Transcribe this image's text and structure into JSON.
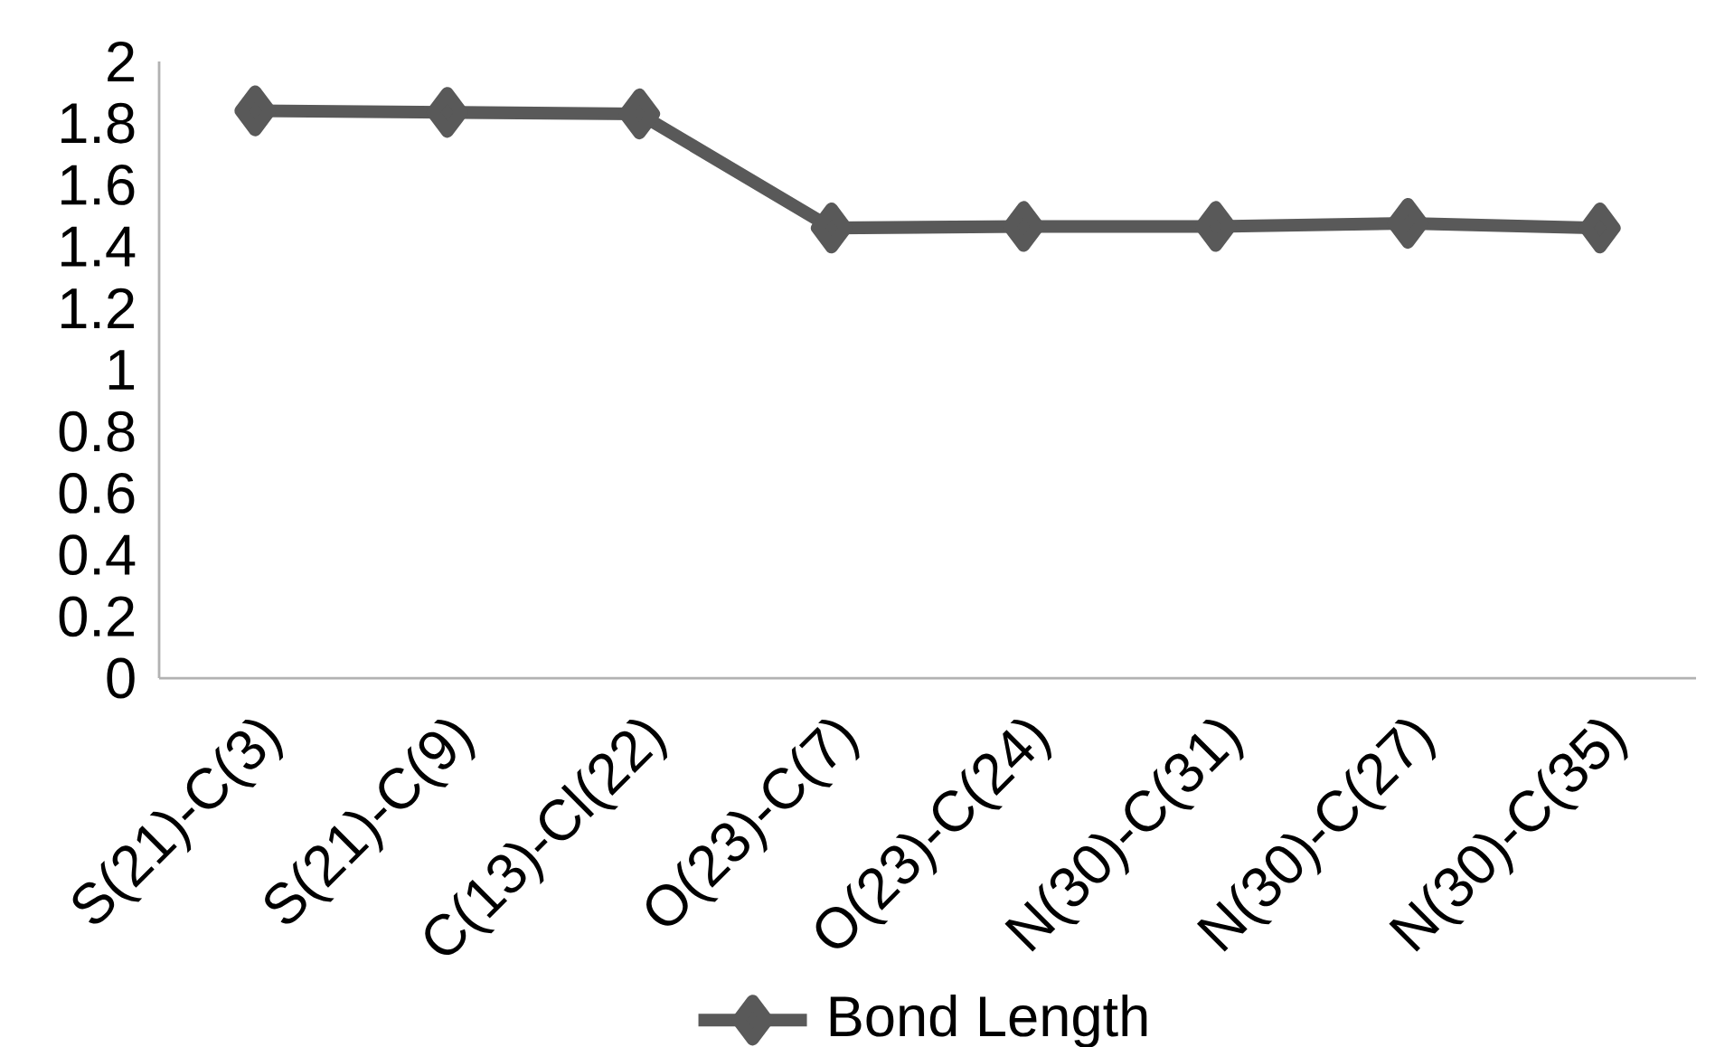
{
  "chart_data": {
    "type": "line",
    "categories": [
      "S(21)-C(3)",
      "S(21)-C(9)",
      "C(13)-Cl(22)",
      "O(23)-C(7)",
      "O(23)-C(24)",
      "N(30)-C(31)",
      "N(30)-C(27)",
      "N(30)-C(35)"
    ],
    "series": [
      {
        "name": "Bond Length",
        "color": "#595959",
        "values": [
          1.84,
          1.835,
          1.83,
          1.46,
          1.465,
          1.465,
          1.475,
          1.46
        ]
      }
    ],
    "ylim": [
      0,
      2
    ],
    "yticks": [
      0,
      0.2,
      0.4,
      0.6,
      0.8,
      1,
      1.2,
      1.4,
      1.6,
      1.8,
      2
    ],
    "grid": false,
    "legend": "bottom",
    "marker": "diamond",
    "line_style": "solid"
  }
}
